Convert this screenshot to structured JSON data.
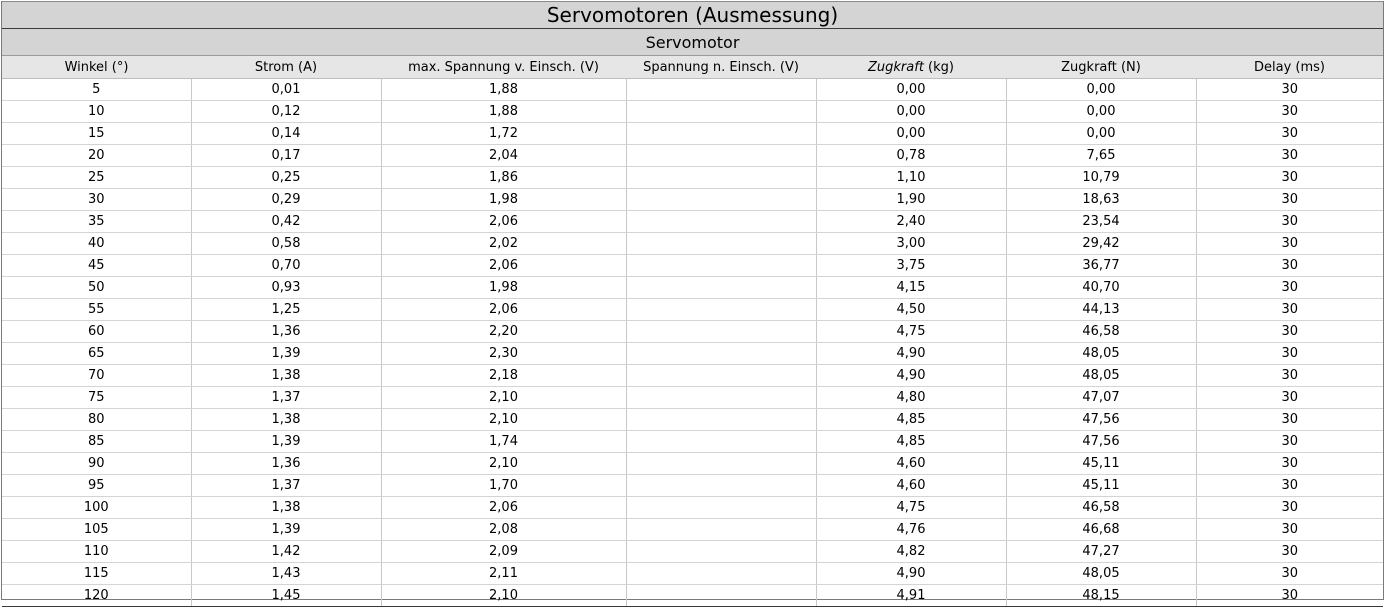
{
  "title": "Servomotoren (Ausmessung)",
  "subtitle": "Servomotor",
  "columns": [
    {
      "label": "Winkel (°)"
    },
    {
      "label": "Strom (A)"
    },
    {
      "label": "max. Spannung v. Einsch. (V)"
    },
    {
      "label": "Spannung n. Einsch. (V)"
    },
    {
      "label_italic": "Zugkraft",
      "label_rest": " (kg)"
    },
    {
      "label": "Zugkraft (N)"
    },
    {
      "label": "Delay (ms)"
    }
  ],
  "rows": [
    [
      "5",
      "0,01",
      "1,88",
      "",
      "0,00",
      "0,00",
      "30"
    ],
    [
      "10",
      "0,12",
      "1,88",
      "",
      "0,00",
      "0,00",
      "30"
    ],
    [
      "15",
      "0,14",
      "1,72",
      "",
      "0,00",
      "0,00",
      "30"
    ],
    [
      "20",
      "0,17",
      "2,04",
      "",
      "0,78",
      "7,65",
      "30"
    ],
    [
      "25",
      "0,25",
      "1,86",
      "",
      "1,10",
      "10,79",
      "30"
    ],
    [
      "30",
      "0,29",
      "1,98",
      "",
      "1,90",
      "18,63",
      "30"
    ],
    [
      "35",
      "0,42",
      "2,06",
      "",
      "2,40",
      "23,54",
      "30"
    ],
    [
      "40",
      "0,58",
      "2,02",
      "",
      "3,00",
      "29,42",
      "30"
    ],
    [
      "45",
      "0,70",
      "2,06",
      "",
      "3,75",
      "36,77",
      "30"
    ],
    [
      "50",
      "0,93",
      "1,98",
      "",
      "4,15",
      "40,70",
      "30"
    ],
    [
      "55",
      "1,25",
      "2,06",
      "",
      "4,50",
      "44,13",
      "30"
    ],
    [
      "60",
      "1,36",
      "2,20",
      "",
      "4,75",
      "46,58",
      "30"
    ],
    [
      "65",
      "1,39",
      "2,30",
      "",
      "4,90",
      "48,05",
      "30"
    ],
    [
      "70",
      "1,38",
      "2,18",
      "",
      "4,90",
      "48,05",
      "30"
    ],
    [
      "75",
      "1,37",
      "2,10",
      "",
      "4,80",
      "47,07",
      "30"
    ],
    [
      "80",
      "1,38",
      "2,10",
      "",
      "4,85",
      "47,56",
      "30"
    ],
    [
      "85",
      "1,39",
      "1,74",
      "",
      "4,85",
      "47,56",
      "30"
    ],
    [
      "90",
      "1,36",
      "2,10",
      "",
      "4,60",
      "45,11",
      "30"
    ],
    [
      "95",
      "1,37",
      "1,70",
      "",
      "4,60",
      "45,11",
      "30"
    ],
    [
      "100",
      "1,38",
      "2,06",
      "",
      "4,75",
      "46,58",
      "30"
    ],
    [
      "105",
      "1,39",
      "2,08",
      "",
      "4,76",
      "46,68",
      "30"
    ],
    [
      "110",
      "1,42",
      "2,09",
      "",
      "4,82",
      "47,27",
      "30"
    ],
    [
      "115",
      "1,43",
      "2,11",
      "",
      "4,90",
      "48,05",
      "30"
    ],
    [
      "120",
      "1,45",
      "2,10",
      "",
      "4,91",
      "48,15",
      "30"
    ]
  ]
}
